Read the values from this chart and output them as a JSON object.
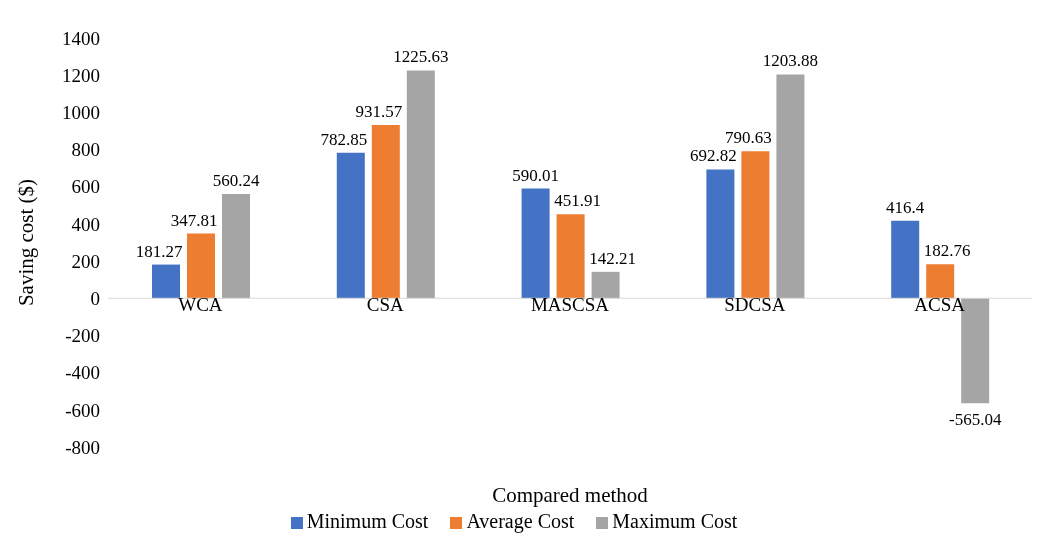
{
  "chart_data": {
    "type": "bar",
    "xlabel": "Compared method",
    "ylabel": "Saving cost ($)",
    "categories": [
      "WCA",
      "CSA",
      "MASCSA",
      "SDCSA",
      "ACSA"
    ],
    "series": [
      {
        "name": "Minimum Cost",
        "color": "#4472c4",
        "values": [
          181.27,
          782.85,
          590.01,
          692.82,
          416.4
        ]
      },
      {
        "name": "Average Cost",
        "color": "#ed7d31",
        "values": [
          347.81,
          931.57,
          451.91,
          790.63,
          182.76
        ]
      },
      {
        "name": "Maximum Cost",
        "color": "#a5a5a5",
        "values": [
          560.24,
          1225.63,
          142.21,
          1203.88,
          -565.04
        ]
      }
    ],
    "ylim": [
      -800,
      1400
    ],
    "yticks": [
      -800,
      -600,
      -400,
      -200,
      0,
      200,
      400,
      600,
      800,
      1000,
      1200,
      1400
    ],
    "data_labels": true,
    "legend": "bottom"
  }
}
